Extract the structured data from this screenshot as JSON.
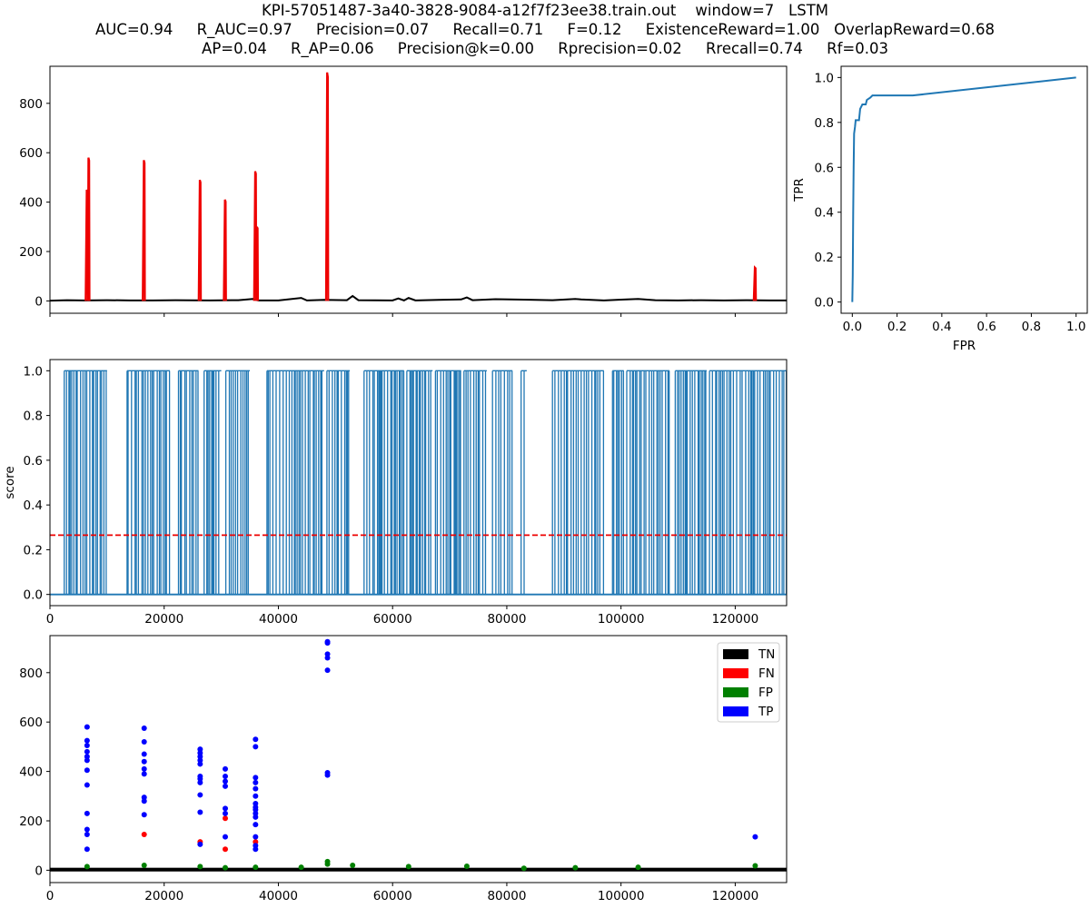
{
  "title": {
    "line1": "KPI-57051487-3a40-3828-9084-a12f7f23ee38.train.out    window=7   LSTM",
    "line2": "AUC=0.94     R_AUC=0.97     Precision=0.07     Recall=0.71     F=0.12     ExistenceReward=1.00   OverlapReward=0.68",
    "line3": "AP=0.04     R_AP=0.06     Precision@k=0.00     Rprecision=0.02     Rrecall=0.74     Rf=0.03"
  },
  "chart_data": [
    {
      "id": "timeseries",
      "type": "line",
      "xlim": [
        0,
        129000
      ],
      "ylim": [
        -50,
        950
      ],
      "yticks": [
        0,
        200,
        400,
        600,
        800
      ],
      "series": [
        {
          "color": "#000000",
          "points": [
            [
              0,
              1
            ],
            [
              3000,
              3
            ],
            [
              6000,
              2
            ],
            [
              10000,
              3
            ],
            [
              14000,
              2
            ],
            [
              18000,
              2
            ],
            [
              22000,
              3
            ],
            [
              28000,
              2
            ],
            [
              33000,
              3
            ],
            [
              35500,
              8
            ],
            [
              36500,
              2
            ],
            [
              40000,
              2
            ],
            [
              44000,
              12
            ],
            [
              45000,
              2
            ],
            [
              48000,
              4
            ],
            [
              52000,
              3
            ],
            [
              53000,
              20
            ],
            [
              54000,
              3
            ],
            [
              60000,
              2
            ],
            [
              61000,
              10
            ],
            [
              62000,
              2
            ],
            [
              62800,
              12
            ],
            [
              64000,
              2
            ],
            [
              68000,
              4
            ],
            [
              72000,
              6
            ],
            [
              73000,
              14
            ],
            [
              74000,
              3
            ],
            [
              78000,
              7
            ],
            [
              83000,
              5
            ],
            [
              88000,
              3
            ],
            [
              92000,
              8
            ],
            [
              93000,
              6
            ],
            [
              97000,
              2
            ],
            [
              100000,
              5
            ],
            [
              103000,
              8
            ],
            [
              106000,
              3
            ],
            [
              110000,
              2
            ],
            [
              114000,
              3
            ],
            [
              118000,
              2
            ],
            [
              122000,
              3
            ],
            [
              126000,
              2
            ],
            [
              129000,
              2
            ]
          ]
        },
        {
          "color": "#ee0000",
          "spikes": [
            {
              "x": 6500,
              "peaks": [
                450,
                580
              ]
            },
            {
              "x": 16500,
              "peaks": [
                570
              ]
            },
            {
              "x": 26300,
              "peaks": [
                490
              ]
            },
            {
              "x": 30700,
              "peaks": [
                410
              ]
            },
            {
              "x": 36000,
              "peaks": [
                525,
                300
              ]
            },
            {
              "x": 48600,
              "peaks": [
                925
              ]
            },
            {
              "x": 123500,
              "peaks": [
                135
              ]
            }
          ]
        }
      ]
    },
    {
      "id": "roc",
      "type": "line",
      "xlabel": "FPR",
      "ylabel": "TPR",
      "xlim": [
        -0.05,
        1.05
      ],
      "ylim": [
        -0.05,
        1.05
      ],
      "xticks": [
        0.0,
        0.2,
        0.4,
        0.6,
        0.8,
        1.0
      ],
      "yticks": [
        0.0,
        0.2,
        0.4,
        0.6,
        0.8,
        1.0
      ],
      "color": "#1f77b4",
      "points": [
        [
          0,
          0
        ],
        [
          0.002,
          0.12
        ],
        [
          0.004,
          0.4
        ],
        [
          0.006,
          0.6
        ],
        [
          0.008,
          0.75
        ],
        [
          0.012,
          0.78
        ],
        [
          0.015,
          0.81
        ],
        [
          0.03,
          0.81
        ],
        [
          0.035,
          0.86
        ],
        [
          0.045,
          0.88
        ],
        [
          0.06,
          0.88
        ],
        [
          0.065,
          0.9
        ],
        [
          0.08,
          0.91
        ],
        [
          0.09,
          0.92
        ],
        [
          0.27,
          0.92
        ],
        [
          1.0,
          1.0
        ]
      ]
    },
    {
      "id": "score",
      "type": "line",
      "ylabel": "score",
      "xlim": [
        0,
        129000
      ],
      "ylim": [
        -0.05,
        1.05
      ],
      "xticks": [
        0,
        20000,
        40000,
        60000,
        80000,
        100000,
        120000
      ],
      "yticks": [
        0.0,
        0.2,
        0.4,
        0.6,
        0.8,
        1.0
      ],
      "color": "#1f77b4",
      "threshold": 0.265,
      "threshold_color": "#ee0000",
      "baseline": 0.0,
      "bursts": [
        [
          2500,
          10000
        ],
        [
          13500,
          21000
        ],
        [
          22500,
          26000
        ],
        [
          27000,
          30000
        ],
        [
          30800,
          35000
        ],
        [
          38000,
          48000
        ],
        [
          48500,
          52500
        ],
        [
          55000,
          62000
        ],
        [
          62500,
          67000
        ],
        [
          67500,
          72000
        ],
        [
          72500,
          76500
        ],
        [
          77500,
          81000
        ],
        [
          82500,
          83500
        ],
        [
          88000,
          97000
        ],
        [
          98500,
          100500
        ],
        [
          101000,
          108500
        ],
        [
          109500,
          115000
        ],
        [
          115500,
          129000
        ]
      ]
    },
    {
      "id": "classification",
      "type": "scatter",
      "xlim": [
        0,
        129000
      ],
      "ylim": [
        -50,
        950
      ],
      "xticks": [
        0,
        20000,
        40000,
        60000,
        80000,
        100000,
        120000
      ],
      "yticks": [
        0,
        200,
        400,
        600,
        800
      ],
      "legend": [
        {
          "name": "TN",
          "color": "#000000"
        },
        {
          "name": "FN",
          "color": "#ff0000"
        },
        {
          "name": "FP",
          "color": "#008000"
        },
        {
          "name": "TP",
          "color": "#0000ff"
        }
      ],
      "legend_position": "top-right",
      "points": {
        "TP": [
          [
            6500,
            580
          ],
          [
            6500,
            525
          ],
          [
            6500,
            505
          ],
          [
            6500,
            480
          ],
          [
            6500,
            460
          ],
          [
            6500,
            445
          ],
          [
            6500,
            405
          ],
          [
            6500,
            345
          ],
          [
            6500,
            230
          ],
          [
            6500,
            165
          ],
          [
            6500,
            145
          ],
          [
            6500,
            85
          ],
          [
            16500,
            575
          ],
          [
            16500,
            520
          ],
          [
            16500,
            470
          ],
          [
            16500,
            440
          ],
          [
            16500,
            410
          ],
          [
            16500,
            390
          ],
          [
            16500,
            295
          ],
          [
            16500,
            280
          ],
          [
            16500,
            225
          ],
          [
            26300,
            490
          ],
          [
            26300,
            475
          ],
          [
            26300,
            460
          ],
          [
            26300,
            445
          ],
          [
            26300,
            430
          ],
          [
            26300,
            380
          ],
          [
            26300,
            370
          ],
          [
            26300,
            355
          ],
          [
            26300,
            305
          ],
          [
            26300,
            235
          ],
          [
            26300,
            105
          ],
          [
            30700,
            410
          ],
          [
            30700,
            380
          ],
          [
            30700,
            360
          ],
          [
            30700,
            340
          ],
          [
            30700,
            250
          ],
          [
            30700,
            230
          ],
          [
            30700,
            135
          ],
          [
            36000,
            530
          ],
          [
            36000,
            500
          ],
          [
            36000,
            375
          ],
          [
            36000,
            355
          ],
          [
            36000,
            330
          ],
          [
            36000,
            300
          ],
          [
            36000,
            270
          ],
          [
            36000,
            255
          ],
          [
            36000,
            245
          ],
          [
            36000,
            230
          ],
          [
            36000,
            215
          ],
          [
            36000,
            185
          ],
          [
            36000,
            135
          ],
          [
            36000,
            100
          ],
          [
            36000,
            85
          ],
          [
            48600,
            925
          ],
          [
            48600,
            920
          ],
          [
            48600,
            875
          ],
          [
            48600,
            860
          ],
          [
            48600,
            810
          ],
          [
            48600,
            395
          ],
          [
            48600,
            385
          ],
          [
            123500,
            135
          ]
        ],
        "FN": [
          [
            16500,
            145
          ],
          [
            26300,
            115
          ],
          [
            30700,
            210
          ],
          [
            30700,
            85
          ],
          [
            36000,
            115
          ]
        ],
        "FP": [
          [
            6500,
            15
          ],
          [
            16500,
            20
          ],
          [
            26300,
            15
          ],
          [
            30700,
            10
          ],
          [
            36000,
            12
          ],
          [
            44000,
            12
          ],
          [
            48600,
            35
          ],
          [
            48600,
            25
          ],
          [
            53000,
            20
          ],
          [
            62800,
            15
          ],
          [
            73000,
            16
          ],
          [
            83000,
            8
          ],
          [
            92000,
            10
          ],
          [
            103000,
            12
          ],
          [
            123500,
            18
          ]
        ],
        "TN_baseline": [
          0,
          10
        ]
      }
    }
  ]
}
